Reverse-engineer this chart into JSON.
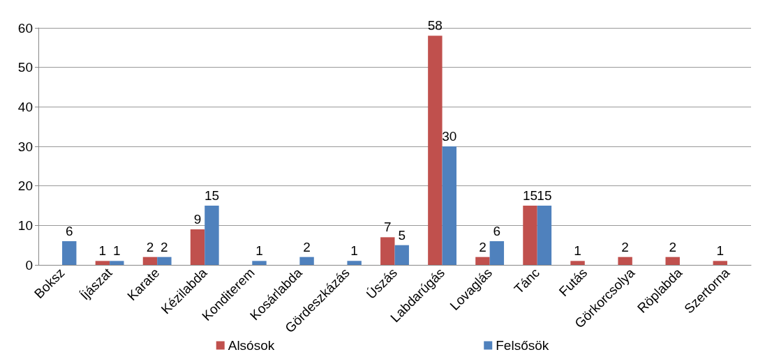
{
  "chart_data": {
    "type": "bar",
    "categories": [
      "Boksz",
      "Íjászat",
      "Karate",
      "Kézilabda",
      "Konditerem",
      "Kosárlabda",
      "Gördeszkázás",
      "Úszás",
      "Labdarúgás",
      "Lovaglás",
      "Tánc",
      "Futás",
      "Görkorcsolya",
      "Röplabda",
      "Szertorna"
    ],
    "series": [
      {
        "name": "Alsósok",
        "color": "#c0504d",
        "values": [
          null,
          1,
          2,
          9,
          null,
          null,
          null,
          7,
          58,
          2,
          15,
          1,
          2,
          2,
          1
        ]
      },
      {
        "name": "Felsősök",
        "color": "#4f81bd",
        "values": [
          6,
          1,
          2,
          15,
          1,
          2,
          1,
          5,
          30,
          6,
          15,
          null,
          null,
          null,
          null
        ]
      }
    ],
    "ylim": [
      0,
      60
    ],
    "yticks": [
      0,
      10,
      20,
      30,
      40,
      50,
      60
    ],
    "grid": "y",
    "legend": "bottom",
    "data_labels": true
  }
}
